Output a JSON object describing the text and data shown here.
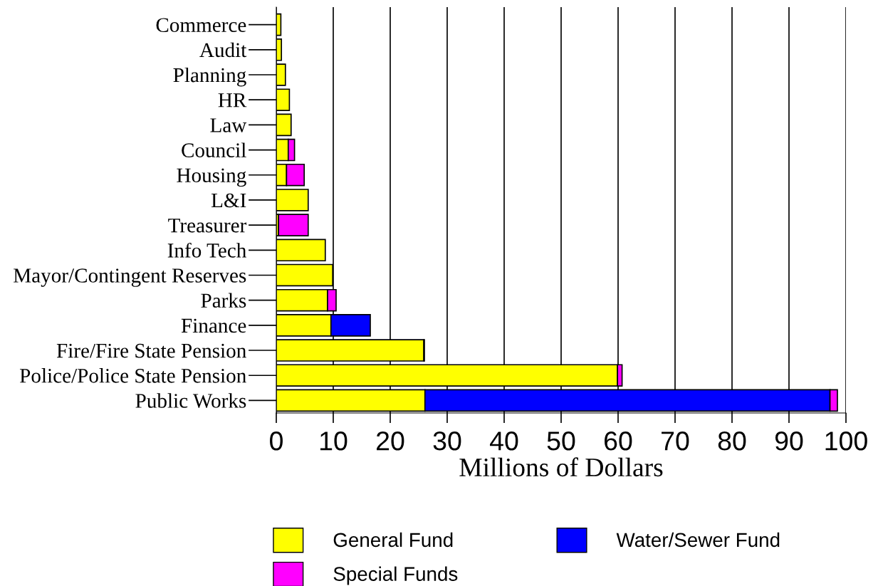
{
  "chart_data": {
    "type": "bar",
    "orientation": "horizontal",
    "stacked": true,
    "xlabel": "Millions of Dollars",
    "categories": [
      "Commerce",
      "Audit",
      "Planning",
      "HR",
      "Law",
      "Council",
      "Housing",
      "L&I",
      "Treasurer",
      "Info Tech",
      "Mayor/Contingent Reserves",
      "Parks",
      "Finance",
      "Fire/Fire State Pension",
      "Police/Police State Pension",
      "Public Works"
    ],
    "series": [
      {
        "name": "General Fund",
        "color": "#ffff00",
        "values": [
          0.8,
          0.9,
          1.6,
          2.3,
          2.6,
          2.1,
          1.8,
          5.6,
          0.4,
          8.6,
          9.9,
          9.0,
          9.6,
          25.9,
          59.9,
          26.1
        ]
      },
      {
        "name": "Water/Sewer Fund",
        "color": "#0000ff",
        "values": [
          null,
          null,
          null,
          null,
          null,
          null,
          null,
          null,
          null,
          null,
          null,
          null,
          6.9,
          null,
          null,
          71.1
        ]
      },
      {
        "name": "Special Funds",
        "color": "#ff00ff",
        "values": [
          null,
          null,
          null,
          null,
          null,
          1.1,
          3.1,
          null,
          5.2,
          null,
          null,
          1.5,
          null,
          0.1,
          0.8,
          1.3
        ]
      }
    ],
    "xlim": [
      0,
      100
    ],
    "xticks": [
      0,
      10,
      20,
      30,
      40,
      50,
      60,
      70,
      80,
      90,
      100
    ],
    "grid": "x",
    "legend": "bottom"
  }
}
